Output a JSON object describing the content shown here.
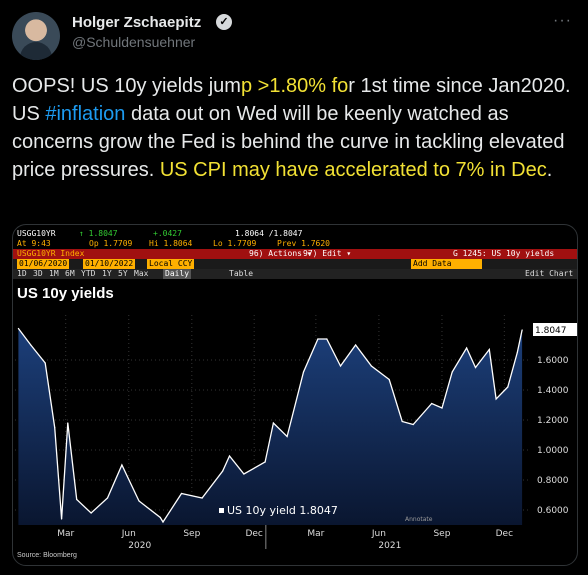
{
  "author": {
    "display_name": "Holger Zschaepitz",
    "handle": "@Schuldensuehner",
    "verified_icon": "check"
  },
  "tweet": {
    "parts": [
      {
        "text": "OOPS! US 10y yields jum",
        "style": "normal"
      },
      {
        "text": "p >1.80% fo",
        "style": "highlight"
      },
      {
        "text": "r 1st time since Jan2020. US ",
        "style": "normal"
      },
      {
        "text": "#inflation",
        "style": "hashtag"
      },
      {
        "text": " data out on Wed will be keenly watched as concerns grow the Fed is behind the curve in tackling elevated price pressures. ",
        "style": "normal"
      },
      {
        "text": "US CPI may have accelerated to 7% in Dec",
        "style": "highlight"
      },
      {
        "text": ".",
        "style": "normal"
      }
    ]
  },
  "terminal": {
    "ticker": "USGG10YR",
    "last": "↑ 1.8047",
    "change": "+.0427",
    "range": "1.8064 /1.8047",
    "at": "At  9:43",
    "open": "Op 1.7709",
    "hi": "Hi 1.8064",
    "lo": "Lo 1.7709",
    "prev": "Prev  1.7620",
    "index_label": "USGG10YR Index",
    "actions": "96) Actions ▾",
    "edit": "97) Edit ▾",
    "func": "G 1245: US 10y yields",
    "date_from": "01/06/2020",
    "date_to": "01/10/2022",
    "ccy": "Local CCY",
    "periods": [
      "1D",
      "3D",
      "1M",
      "6M",
      "YTD",
      "1Y",
      "5Y",
      "Max"
    ],
    "period_selected": "Daily",
    "table_btn": "Table",
    "add_data": "Add Data",
    "edit_chart": "Edit Chart",
    "annotate": "Annotate",
    "source": "Source: Bloomberg"
  },
  "chart_data": {
    "type": "line",
    "title": "US 10y yields",
    "series": [
      {
        "name": "US 10y yield 1.8047"
      }
    ],
    "last_value_label": "1.8047",
    "yticks": [
      "0.6000",
      "0.8000",
      "1.0000",
      "1.2000",
      "1.4000",
      "1.6000"
    ],
    "ylim": [
      0.5,
      1.9
    ],
    "xticks": [
      "Mar",
      "Jun",
      "Sep",
      "Dec",
      "Mar",
      "Jun",
      "Sep",
      "Dec"
    ],
    "year_labels": [
      "2020",
      "2021"
    ],
    "x": [
      "2020-01-06",
      "2020-01-24",
      "2020-02-14",
      "2020-02-28",
      "2020-03-09",
      "2020-03-18",
      "2020-03-31",
      "2020-04-21",
      "2020-05-15",
      "2020-06-05",
      "2020-06-30",
      "2020-07-31",
      "2020-08-04",
      "2020-08-31",
      "2020-09-30",
      "2020-10-30",
      "2020-11-09",
      "2020-11-30",
      "2020-12-31",
      "2021-01-12",
      "2021-02-01",
      "2021-02-25",
      "2021-03-18",
      "2021-03-31",
      "2021-04-20",
      "2021-05-12",
      "2021-06-04",
      "2021-06-30",
      "2021-07-19",
      "2021-08-04",
      "2021-08-31",
      "2021-09-15",
      "2021-09-30",
      "2021-10-21",
      "2021-11-03",
      "2021-11-23",
      "2021-12-03",
      "2021-12-20",
      "2022-01-03",
      "2022-01-10"
    ],
    "y": [
      1.81,
      1.7,
      1.58,
      1.15,
      0.54,
      1.18,
      0.67,
      0.58,
      0.68,
      0.9,
      0.66,
      0.55,
      0.52,
      0.71,
      0.68,
      0.86,
      0.96,
      0.84,
      0.92,
      1.18,
      1.09,
      1.52,
      1.74,
      1.74,
      1.56,
      1.7,
      1.56,
      1.47,
      1.19,
      1.17,
      1.31,
      1.28,
      1.52,
      1.68,
      1.55,
      1.67,
      1.34,
      1.42,
      1.65,
      1.8
    ]
  }
}
